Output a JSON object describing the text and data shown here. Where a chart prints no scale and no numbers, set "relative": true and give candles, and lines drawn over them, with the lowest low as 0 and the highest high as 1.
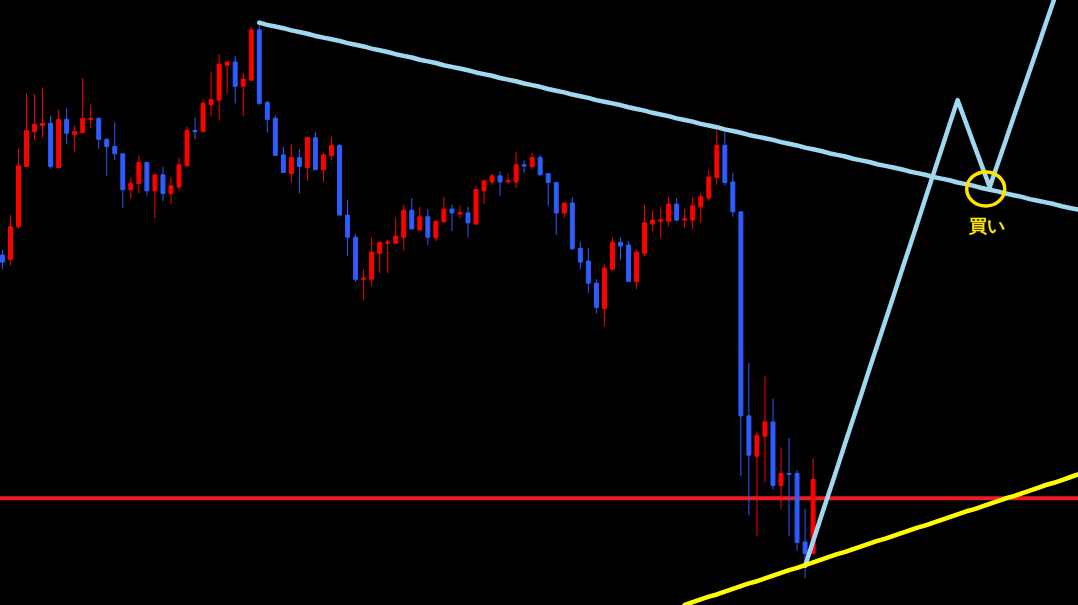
{
  "chart_data": {
    "type": "candlestick",
    "relative": true,
    "line_style": "solid",
    "categories": [
      null,
      null,
      null,
      null,
      null,
      null,
      null,
      null,
      null,
      null,
      null,
      null,
      null,
      null,
      null,
      null,
      null,
      null,
      null,
      null,
      null,
      null,
      null,
      null,
      null,
      null,
      null,
      null,
      null,
      null,
      null,
      null,
      null,
      null,
      null,
      null,
      null,
      null,
      null,
      null,
      null,
      null,
      null,
      null,
      null,
      null,
      null,
      null,
      null,
      null,
      null,
      null,
      null,
      null,
      null,
      null,
      null,
      null,
      null,
      null,
      null,
      null,
      null,
      null,
      null,
      null,
      null,
      null,
      null,
      null,
      null,
      null,
      null,
      null,
      null,
      null,
      null,
      null,
      null,
      null,
      null,
      null,
      null,
      null,
      null,
      null,
      null,
      null,
      null,
      null,
      null,
      null,
      null,
      null,
      null,
      null,
      null,
      null,
      null,
      null,
      null,
      null,
      null,
      null,
      null,
      null,
      null,
      null,
      null,
      null,
      null,
      null,
      null,
      null,
      null,
      null,
      null,
      null,
      null,
      null,
      null,
      null,
      null,
      null,
      null,
      null,
      null,
      null,
      null,
      null,
      null,
      null,
      null,
      null,
      null
    ],
    "ohlc": [
      [
        0.584,
        0.593,
        0.558,
        0.571
      ],
      [
        0.576,
        0.656,
        0.565,
        0.635
      ],
      [
        0.635,
        0.776,
        0.631,
        0.745
      ],
      [
        0.744,
        0.876,
        0.744,
        0.809
      ],
      [
        0.807,
        0.875,
        0.793,
        0.82
      ],
      [
        0.818,
        0.887,
        0.796,
        0.822
      ],
      [
        0.822,
        0.836,
        0.74,
        0.744
      ],
      [
        0.742,
        0.847,
        0.742,
        0.829
      ],
      [
        0.829,
        0.849,
        0.785,
        0.804
      ],
      [
        0.802,
        0.818,
        0.769,
        0.807
      ],
      [
        0.805,
        0.904,
        0.804,
        0.831
      ],
      [
        0.829,
        0.856,
        0.813,
        0.831
      ],
      [
        0.831,
        0.833,
        0.776,
        0.793
      ],
      [
        0.793,
        0.795,
        0.727,
        0.78
      ],
      [
        0.78,
        0.824,
        0.756,
        0.767
      ],
      [
        0.767,
        0.767,
        0.669,
        0.702
      ],
      [
        0.702,
        0.724,
        0.685,
        0.713
      ],
      [
        0.713,
        0.764,
        0.696,
        0.751
      ],
      [
        0.751,
        0.753,
        0.691,
        0.7
      ],
      [
        0.7,
        0.729,
        0.649,
        0.729
      ],
      [
        0.729,
        0.744,
        0.682,
        0.695
      ],
      [
        0.695,
        0.725,
        0.676,
        0.709
      ],
      [
        0.707,
        0.76,
        0.702,
        0.747
      ],
      [
        0.745,
        0.816,
        0.745,
        0.809
      ],
      [
        0.809,
        0.833,
        0.793,
        0.807
      ],
      [
        0.807,
        0.865,
        0.807,
        0.858
      ],
      [
        0.856,
        0.915,
        0.835,
        0.865
      ],
      [
        0.864,
        0.947,
        0.827,
        0.929
      ],
      [
        0.927,
        0.933,
        0.875,
        0.933
      ],
      [
        0.933,
        0.944,
        0.858,
        0.889
      ],
      [
        0.889,
        0.913,
        0.835,
        0.902
      ],
      [
        0.9,
        0.996,
        0.9,
        0.991
      ],
      [
        0.991,
        1,
        0.855,
        0.858
      ],
      [
        0.86,
        0.862,
        0.805,
        0.829
      ],
      [
        0.831,
        0.836,
        0.764,
        0.764
      ],
      [
        0.765,
        0.78,
        0.733,
        0.733
      ],
      [
        0.731,
        0.784,
        0.715,
        0.76
      ],
      [
        0.76,
        0.775,
        0.695,
        0.744
      ],
      [
        0.742,
        0.796,
        0.718,
        0.796
      ],
      [
        0.796,
        0.807,
        0.738,
        0.738
      ],
      [
        0.738,
        0.769,
        0.716,
        0.765
      ],
      [
        0.764,
        0.798,
        0.756,
        0.782
      ],
      [
        0.782,
        0.785,
        0.656,
        0.656
      ],
      [
        0.656,
        0.684,
        0.582,
        0.616
      ],
      [
        0.616,
        0.622,
        0.535,
        0.54
      ],
      [
        0.54,
        0.558,
        0.502,
        0.542
      ],
      [
        0.54,
        0.616,
        0.527,
        0.589
      ],
      [
        0.587,
        0.607,
        0.551,
        0.607
      ],
      [
        0.605,
        0.611,
        0.551,
        0.607
      ],
      [
        0.605,
        0.651,
        0.605,
        0.618
      ],
      [
        0.616,
        0.675,
        0.591,
        0.665
      ],
      [
        0.665,
        0.687,
        0.631,
        0.631
      ],
      [
        0.629,
        0.671,
        0.629,
        0.653
      ],
      [
        0.653,
        0.667,
        0.602,
        0.616
      ],
      [
        0.615,
        0.645,
        0.609,
        0.645
      ],
      [
        0.644,
        0.689,
        0.642,
        0.667
      ],
      [
        0.667,
        0.675,
        0.627,
        0.66
      ],
      [
        0.658,
        0.673,
        0.649,
        0.66
      ],
      [
        0.66,
        0.671,
        0.616,
        0.642
      ],
      [
        0.64,
        0.709,
        0.638,
        0.702
      ],
      [
        0.7,
        0.72,
        0.676,
        0.718
      ],
      [
        0.716,
        0.731,
        0.711,
        0.727
      ],
      [
        0.727,
        0.735,
        0.691,
        0.716
      ],
      [
        0.716,
        0.731,
        0.713,
        0.718
      ],
      [
        0.716,
        0.771,
        0.705,
        0.747
      ],
      [
        0.747,
        0.755,
        0.733,
        0.745
      ],
      [
        0.744,
        0.769,
        0.74,
        0.76
      ],
      [
        0.76,
        0.765,
        0.727,
        0.729
      ],
      [
        0.731,
        0.731,
        0.673,
        0.715
      ],
      [
        0.715,
        0.715,
        0.62,
        0.66
      ],
      [
        0.66,
        0.678,
        0.651,
        0.678
      ],
      [
        0.678,
        0.689,
        0.593,
        0.595
      ],
      [
        0.596,
        0.607,
        0.558,
        0.571
      ],
      [
        0.573,
        0.596,
        0.515,
        0.533
      ],
      [
        0.533,
        0.54,
        0.478,
        0.489
      ],
      [
        0.487,
        0.567,
        0.455,
        0.56
      ],
      [
        0.558,
        0.616,
        0.558,
        0.607
      ],
      [
        0.607,
        0.615,
        0.575,
        0.6
      ],
      [
        0.602,
        0.609,
        0.536,
        0.536
      ],
      [
        0.536,
        0.593,
        0.522,
        0.589
      ],
      [
        0.587,
        0.675,
        0.582,
        0.642
      ],
      [
        0.64,
        0.665,
        0.627,
        0.647
      ],
      [
        0.645,
        0.671,
        0.615,
        0.647
      ],
      [
        0.645,
        0.689,
        0.636,
        0.676
      ],
      [
        0.676,
        0.687,
        0.645,
        0.647
      ],
      [
        0.647,
        0.667,
        0.633,
        0.649
      ],
      [
        0.647,
        0.689,
        0.631,
        0.673
      ],
      [
        0.671,
        0.696,
        0.642,
        0.689
      ],
      [
        0.687,
        0.738,
        0.682,
        0.725
      ],
      [
        0.724,
        0.809,
        0.711,
        0.782
      ],
      [
        0.782,
        0.807,
        0.709,
        0.715
      ],
      [
        0.716,
        0.733,
        0.653,
        0.662
      ],
      [
        0.662,
        0.662,
        0.184,
        0.293
      ],
      [
        0.293,
        0.389,
        0.113,
        0.222
      ],
      [
        0.22,
        0.265,
        0.076,
        0.258
      ],
      [
        0.256,
        0.365,
        0.173,
        0.282
      ],
      [
        0.282,
        0.324,
        0.16,
        0.167
      ],
      [
        0.167,
        0.236,
        0.125,
        0.189
      ],
      [
        0.189,
        0.253,
        0.075,
        0.187
      ],
      [
        0.189,
        0.195,
        0.049,
        0.064
      ],
      [
        0.065,
        0.125,
        0,
        0.044
      ],
      [
        0.044,
        0.216,
        0.044,
        0.178
      ],
      null,
      null,
      null,
      null,
      null,
      null,
      null,
      null,
      null,
      null,
      null,
      null,
      null,
      null,
      null,
      null,
      null,
      null,
      null,
      null,
      null,
      null,
      null,
      null,
      null,
      null,
      null,
      null,
      null,
      null,
      null,
      null,
      null
    ],
    "colors": [
      "#2f5cff",
      "#ff0000",
      "#ff0000",
      "#ff0000",
      "#ff0000",
      "#ff0000",
      "#2f5cff",
      "#ff0000",
      "#2f5cff",
      "#ff0000",
      "#ff0000",
      "#ff0000",
      "#2f5cff",
      "#2f5cff",
      "#2f5cff",
      "#2f5cff",
      "#ff0000",
      "#ff0000",
      "#2f5cff",
      "#ff0000",
      "#2f5cff",
      "#ff0000",
      "#ff0000",
      "#ff0000",
      "#2f5cff",
      "#ff0000",
      "#ff0000",
      "#ff0000",
      "#ff0000",
      "#2f5cff",
      "#ff0000",
      "#ff0000",
      "#2f5cff",
      "#2f5cff",
      "#2f5cff",
      "#2f5cff",
      "#ff0000",
      "#2f5cff",
      "#ff0000",
      "#2f5cff",
      "#ff0000",
      "#ff0000",
      "#2f5cff",
      "#2f5cff",
      "#2f5cff",
      "#ff0000",
      "#ff0000",
      "#ff0000",
      "#ff0000",
      "#ff0000",
      "#ff0000",
      "#2f5cff",
      "#ff0000",
      "#2f5cff",
      "#ff0000",
      "#ff0000",
      "#2f5cff",
      "#ff0000",
      "#2f5cff",
      "#ff0000",
      "#ff0000",
      "#ff0000",
      "#2f5cff",
      "#ff0000",
      "#ff0000",
      "#2f5cff",
      "#ff0000",
      "#2f5cff",
      "#2f5cff",
      "#2f5cff",
      "#ff0000",
      "#2f5cff",
      "#2f5cff",
      "#2f5cff",
      "#2f5cff",
      "#ff0000",
      "#ff0000",
      "#2f5cff",
      "#2f5cff",
      "#ff0000",
      "#ff0000",
      "#ff0000",
      "#ff0000",
      "#ff0000",
      "#2f5cff",
      "#ff0000",
      "#ff0000",
      "#ff0000",
      "#ff0000",
      "#ff0000",
      "#2f5cff",
      "#2f5cff",
      "#2f5cff",
      "#2f5cff",
      "#ff0000",
      "#ff0000",
      "#2f5cff",
      "#ff0000",
      "#2f5cff",
      "#2f5cff",
      "#2f5cff",
      "#ff0000",
      null,
      null,
      null,
      null,
      null,
      null,
      null,
      null,
      null,
      null,
      null,
      null,
      null,
      null,
      null,
      null,
      null,
      null,
      null,
      null,
      null,
      null,
      null,
      null,
      null,
      null,
      null,
      null,
      null,
      null,
      null,
      null,
      null
    ],
    "series": [
      {
        "type": "line",
        "color": "#a0d8ef",
        "values": [
          null,
          null,
          null,
          null,
          null,
          null,
          null,
          null,
          null,
          null,
          null,
          null,
          null,
          null,
          null,
          null,
          null,
          null,
          null,
          null,
          null,
          null,
          null,
          null,
          null,
          null,
          null,
          null,
          null,
          null,
          null,
          null,
          1.004,
          1.0,
          0.997,
          0.994,
          0.99,
          0.987,
          0.984,
          0.98,
          0.977,
          0.974,
          0.971,
          0.967,
          0.964,
          0.961,
          0.957,
          0.954,
          0.951,
          0.947,
          0.944,
          0.941,
          0.937,
          0.934,
          0.931,
          0.927,
          0.924,
          0.921,
          0.918,
          0.914,
          0.911,
          0.908,
          0.904,
          0.901,
          0.898,
          0.894,
          0.891,
          0.888,
          0.884,
          0.881,
          0.878,
          0.874,
          0.871,
          0.868,
          0.864,
          0.861,
          0.858,
          0.855,
          0.851,
          0.848,
          0.845,
          0.841,
          0.838,
          0.835,
          0.831,
          0.828,
          0.825,
          0.821,
          0.818,
          0.815,
          0.811,
          0.808,
          0.805,
          0.801,
          0.798,
          0.795,
          0.792,
          0.788,
          0.785,
          0.782,
          0.778,
          0.775,
          0.772,
          0.768,
          0.765,
          0.762,
          0.758,
          0.755,
          0.752,
          0.748,
          0.745,
          0.742,
          0.739,
          0.735,
          0.732,
          0.729,
          0.725,
          0.722,
          0.719,
          0.715,
          0.712,
          0.709,
          0.705,
          0.702,
          0.699,
          0.695,
          0.692,
          0.689,
          0.685,
          0.682,
          0.679,
          0.676,
          0.672,
          0.669,
          0.666
        ]
      },
      {
        "type": "line",
        "color": "#a0d8ef",
        "values": [
          null,
          null,
          null,
          null,
          null,
          null,
          null,
          null,
          null,
          null,
          null,
          null,
          null,
          null,
          null,
          null,
          null,
          null,
          null,
          null,
          null,
          null,
          null,
          null,
          null,
          null,
          null,
          null,
          null,
          null,
          null,
          null,
          null,
          null,
          null,
          null,
          null,
          null,
          null,
          null,
          null,
          null,
          null,
          null,
          null,
          null,
          null,
          null,
          null,
          null,
          null,
          null,
          null,
          null,
          null,
          null,
          null,
          null,
          null,
          null,
          null,
          null,
          null,
          null,
          null,
          null,
          null,
          null,
          null,
          null,
          null,
          null,
          null,
          null,
          null,
          null,
          null,
          null,
          null,
          null,
          null,
          null,
          null,
          null,
          null,
          null,
          null,
          null,
          null,
          null,
          null,
          null,
          null,
          null,
          null,
          null,
          null,
          null,
          null,
          null,
          0.022,
          0.066,
          0.111,
          0.155,
          0.199,
          0.244,
          0.288,
          0.332,
          0.377,
          0.421,
          0.465,
          0.509,
          0.554,
          0.598,
          0.642,
          0.687,
          0.731,
          0.775,
          0.82,
          0.864,
          0.825,
          0.785,
          0.746,
          0.707,
          0.749,
          0.791,
          0.834,
          0.876,
          0.918,
          0.96,
          1.003,
          1.045,
          null,
          null,
          null
        ]
      },
      {
        "type": "line",
        "color": "#ffff00",
        "values": [
          null,
          null,
          null,
          null,
          null,
          null,
          null,
          null,
          null,
          null,
          null,
          null,
          null,
          null,
          null,
          null,
          null,
          null,
          null,
          null,
          null,
          null,
          null,
          null,
          null,
          null,
          null,
          null,
          null,
          null,
          null,
          null,
          null,
          null,
          null,
          null,
          null,
          null,
          null,
          null,
          null,
          null,
          null,
          null,
          null,
          null,
          null,
          null,
          null,
          null,
          null,
          null,
          null,
          null,
          null,
          null,
          null,
          null,
          null,
          null,
          null,
          null,
          null,
          null,
          null,
          null,
          null,
          null,
          null,
          null,
          null,
          null,
          null,
          null,
          null,
          null,
          null,
          null,
          null,
          null,
          null,
          null,
          null,
          null,
          null,
          -0.049,
          -0.044,
          -0.039,
          -0.034,
          -0.03,
          -0.025,
          -0.02,
          -0.015,
          -0.01,
          -0.006,
          -0.001,
          0.004,
          0.009,
          0.014,
          0.018,
          0.023,
          0.028,
          0.033,
          0.038,
          0.043,
          0.047,
          0.052,
          0.057,
          0.062,
          0.067,
          0.071,
          0.076,
          0.081,
          0.086,
          0.091,
          0.095,
          0.1,
          0.105,
          0.11,
          0.115,
          0.12,
          0.124,
          0.129,
          0.134,
          0.139,
          0.144,
          0.148,
          0.153,
          0.158,
          0.163,
          0.168,
          0.172,
          0.177,
          0.182,
          0.187
        ]
      }
    ],
    "ref_lines": [
      {
        "axis": "y",
        "value": 0.144,
        "color": "#ee1c24"
      }
    ],
    "annotations": [
      {
        "text": "買い",
        "y": 0.707
      }
    ]
  }
}
